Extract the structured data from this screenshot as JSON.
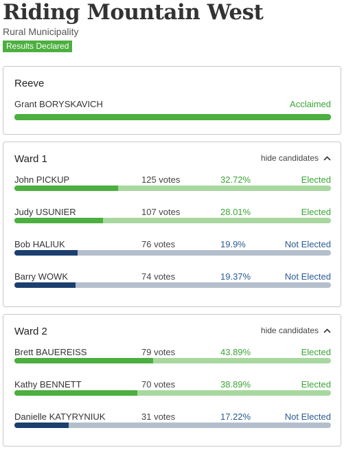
{
  "header": {
    "title": "Riding Mountain West",
    "subtitle": "Rural Municipality",
    "badge": "Results Declared"
  },
  "colors": {
    "elected": "#4caf3f",
    "elected_light": "#a8d8a0",
    "not_elected": "#1b3f6e",
    "not_elected_light": "#b4bfcc"
  },
  "reeve": {
    "title": "Reeve",
    "candidate": {
      "name": "Grant BORYSKAVICH",
      "status": "Acclaimed"
    }
  },
  "ward1": {
    "title": "Ward 1",
    "toggle_label": "hide candidates",
    "toggle_icon": "chevron-up-icon",
    "candidates": [
      {
        "name": "John PICKUP",
        "votes": "125 votes",
        "pct": "32.72%",
        "share": 32.72,
        "status": "Elected",
        "elected": true
      },
      {
        "name": "Judy USUNIER",
        "votes": "107 votes",
        "pct": "28.01%",
        "share": 28.01,
        "status": "Elected",
        "elected": true
      },
      {
        "name": "Bob HALIUK",
        "votes": "76 votes",
        "pct": "19.9%",
        "share": 19.9,
        "status": "Not Elected",
        "elected": false
      },
      {
        "name": "Barry WOWK",
        "votes": "74 votes",
        "pct": "19.37%",
        "share": 19.37,
        "status": "Not Elected",
        "elected": false
      }
    ]
  },
  "ward2": {
    "title": "Ward 2",
    "toggle_label": "hide candidates",
    "toggle_icon": "chevron-up-icon",
    "candidates": [
      {
        "name": "Brett BAUEREISS",
        "votes": "79 votes",
        "pct": "43.89%",
        "share": 43.89,
        "status": "Elected",
        "elected": true
      },
      {
        "name": "Kathy BENNETT",
        "votes": "70 votes",
        "pct": "38.89%",
        "share": 38.89,
        "status": "Elected",
        "elected": true
      },
      {
        "name": "Danielle KATYRYNIUK",
        "votes": "31 votes",
        "pct": "17.22%",
        "share": 17.22,
        "status": "Not Elected",
        "elected": false
      }
    ]
  }
}
